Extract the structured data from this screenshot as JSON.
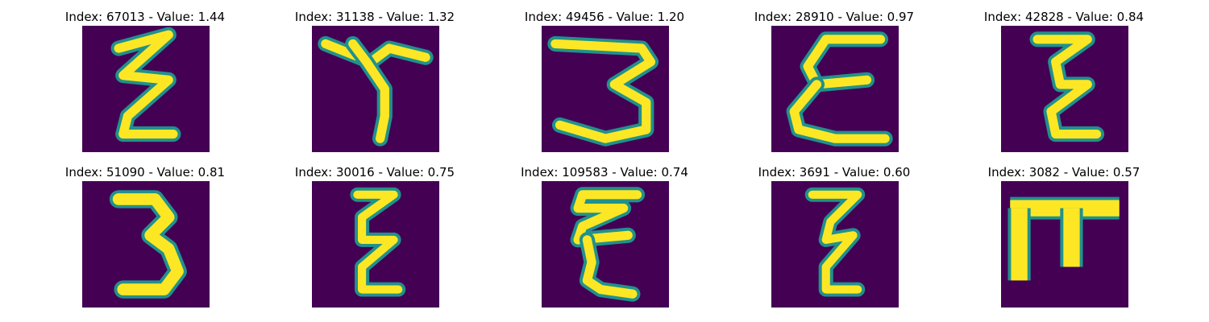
{
  "colors": {
    "background": "#440154",
    "mid": "#21918c",
    "stroke": "#fde725"
  },
  "panels": [
    {
      "title": "Index: 67013 - Value: 1.44",
      "glyph": "zigzag-z-icon"
    },
    {
      "title": "Index: 31138 - Value: 1.32",
      "glyph": "t-shape-icon"
    },
    {
      "title": "Index: 49456 - Value: 1.20",
      "glyph": "three-shape-icon"
    },
    {
      "title": "Index: 28910 - Value: 0.97",
      "glyph": "epsilon-shape-icon"
    },
    {
      "title": "Index: 42828 - Value: 0.84",
      "glyph": "zigzag-z-icon"
    },
    {
      "title": "Index: 51090 - Value: 0.81",
      "glyph": "three-shape-icon"
    },
    {
      "title": "Index: 30016 - Value: 0.75",
      "glyph": "zigzag-z-icon"
    },
    {
      "title": "Index: 109583 - Value: 0.74",
      "glyph": "epsilon-shape-icon"
    },
    {
      "title": "Index: 3691 - Value: 0.60",
      "glyph": "zigzag-z-icon"
    },
    {
      "title": "Index: 3082 - Value: 0.57",
      "glyph": "pi-shape-icon"
    }
  ]
}
